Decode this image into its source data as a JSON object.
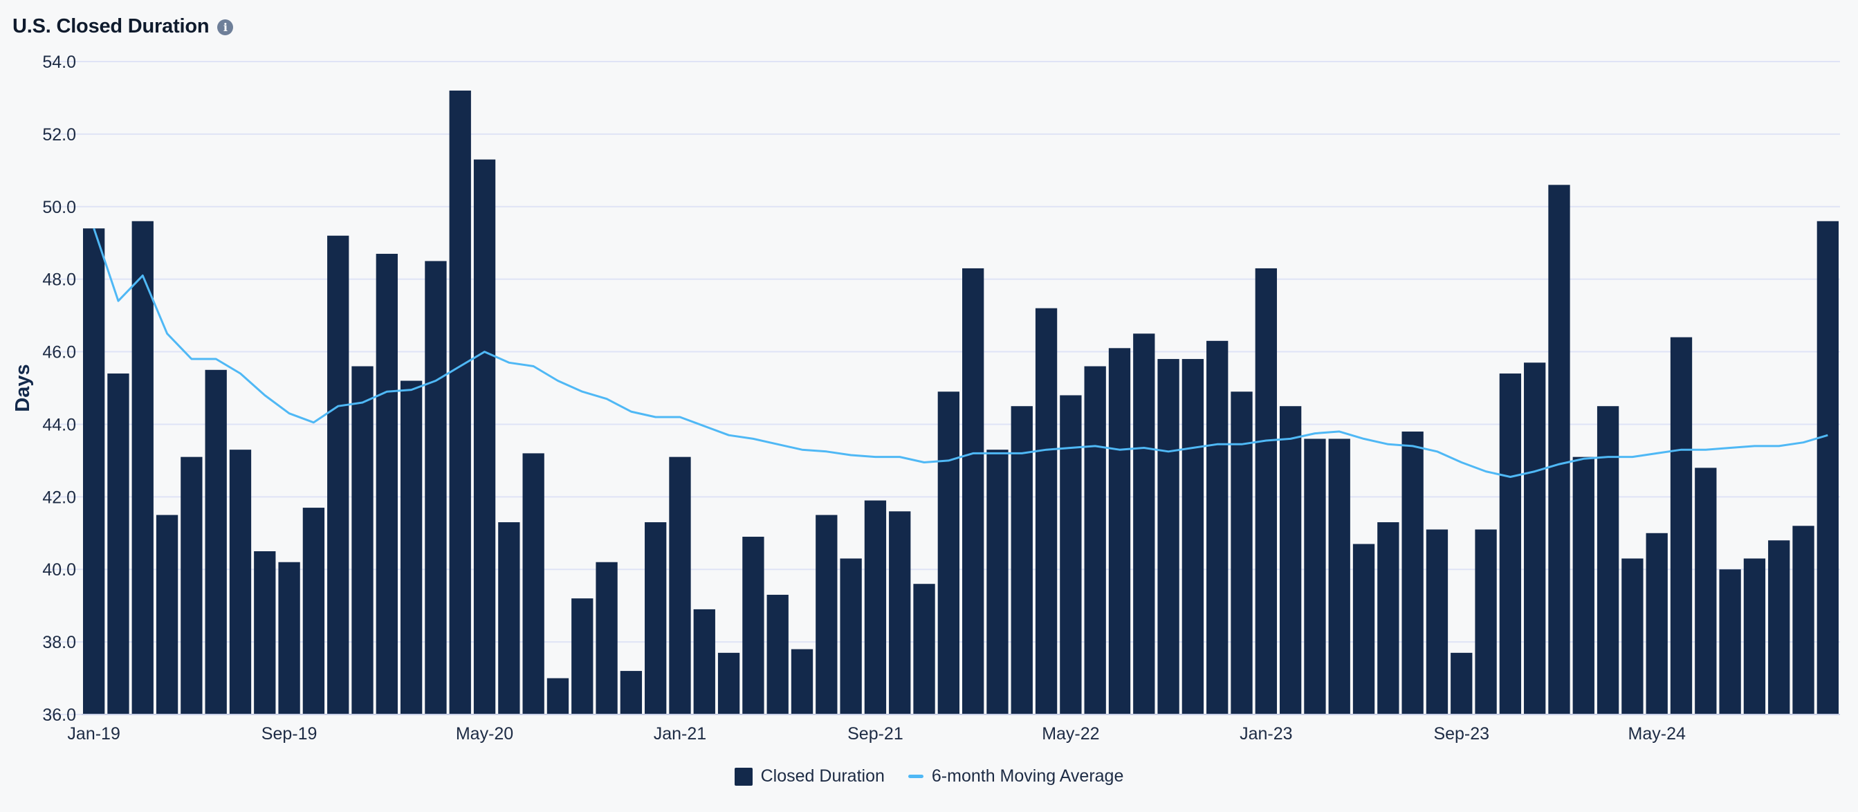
{
  "header": {
    "title": "U.S. Closed Duration",
    "info_icon": "info-icon"
  },
  "colors": {
    "bar": "#13294b",
    "line": "#4fb8f5",
    "grid": "#dfe3f6",
    "background": "#f7f8f9"
  },
  "legend": {
    "bar_label": "Closed Duration",
    "line_label": "6-month Moving Average"
  },
  "chart_data": {
    "type": "bar",
    "title": "U.S. Closed Duration",
    "ylabel": "Days",
    "xlabel": "",
    "ylim": [
      36,
      54
    ],
    "y_ticks": [
      "36.0",
      "38.0",
      "40.0",
      "42.0",
      "44.0",
      "46.0",
      "48.0",
      "50.0",
      "52.0",
      "54.0"
    ],
    "x_tick_labels": [
      "Jan-19",
      "Sep-19",
      "May-20",
      "Jan-21",
      "Sep-21",
      "May-22",
      "Jan-23",
      "Sep-23",
      "May-24"
    ],
    "x_tick_every": 8,
    "grid": true,
    "legend_position": "bottom-center",
    "categories": [
      "Jan-19",
      "Feb-19",
      "Mar-19",
      "Apr-19",
      "May-19",
      "Jun-19",
      "Jul-19",
      "Aug-19",
      "Sep-19",
      "Oct-19",
      "Nov-19",
      "Dec-19",
      "Jan-20",
      "Feb-20",
      "Mar-20",
      "Apr-20",
      "May-20",
      "Jun-20",
      "Jul-20",
      "Aug-20",
      "Sep-20",
      "Oct-20",
      "Nov-20",
      "Dec-20",
      "Jan-21",
      "Feb-21",
      "Mar-21",
      "Apr-21",
      "May-21",
      "Jun-21",
      "Jul-21",
      "Aug-21",
      "Sep-21",
      "Oct-21",
      "Nov-21",
      "Dec-21",
      "Jan-22",
      "Feb-22",
      "Mar-22",
      "Apr-22",
      "May-22",
      "Jun-22",
      "Jul-22",
      "Aug-22",
      "Sep-22",
      "Oct-22",
      "Nov-22",
      "Dec-22",
      "Jan-23",
      "Feb-23",
      "Mar-23",
      "Apr-23",
      "May-23",
      "Jun-23",
      "Jul-23",
      "Aug-23",
      "Sep-23",
      "Oct-23",
      "Nov-23",
      "Dec-23",
      "Jan-24",
      "Feb-24",
      "Mar-24",
      "Apr-24",
      "May-24",
      "Jun-24",
      "Jul-24",
      "Aug-24",
      "Sep-24",
      "Oct-24",
      "Nov-24",
      "Dec-24"
    ],
    "series": [
      {
        "name": "Closed Duration",
        "type": "bar",
        "values": [
          49.4,
          45.4,
          49.6,
          41.5,
          43.1,
          45.5,
          43.3,
          40.5,
          40.2,
          41.7,
          49.2,
          45.6,
          48.7,
          45.2,
          48.5,
          53.2,
          51.3,
          41.3,
          43.2,
          37.0,
          39.2,
          40.2,
          37.2,
          41.3,
          43.1,
          38.9,
          37.7,
          40.9,
          39.3,
          37.8,
          41.5,
          40.3,
          41.9,
          41.6,
          39.6,
          44.9,
          48.3,
          43.3,
          44.5,
          47.2,
          44.8,
          45.6,
          46.1,
          46.5,
          45.8,
          45.8,
          46.3,
          44.9,
          48.3,
          44.5,
          43.6,
          43.6,
          40.7,
          41.3,
          43.8,
          41.1,
          37.7,
          41.1,
          45.4,
          45.7,
          50.6,
          43.1,
          44.5,
          40.3,
          41.0,
          46.4,
          42.8,
          40.0,
          40.3,
          40.8,
          41.2,
          49.6
        ]
      },
      {
        "name": "6-month Moving Average",
        "type": "line",
        "values": [
          49.4,
          47.4,
          48.1,
          46.5,
          45.8,
          45.8,
          45.4,
          44.8,
          44.3,
          44.05,
          44.5,
          44.6,
          44.9,
          44.95,
          45.2,
          45.6,
          46.0,
          45.7,
          45.6,
          45.2,
          44.9,
          44.7,
          44.35,
          44.2,
          44.2,
          43.95,
          43.7,
          43.6,
          43.45,
          43.3,
          43.25,
          43.15,
          43.1,
          43.1,
          42.95,
          43.0,
          43.2,
          43.2,
          43.2,
          43.3,
          43.35,
          43.4,
          43.3,
          43.35,
          43.25,
          43.35,
          43.45,
          43.45,
          43.55,
          43.6,
          43.75,
          43.8,
          43.6,
          43.45,
          43.4,
          43.25,
          42.95,
          42.7,
          42.55,
          42.7,
          42.9,
          43.05,
          43.1,
          43.1,
          43.2,
          43.3,
          43.3,
          43.35,
          43.4,
          43.4,
          43.5,
          43.7
        ]
      }
    ]
  }
}
